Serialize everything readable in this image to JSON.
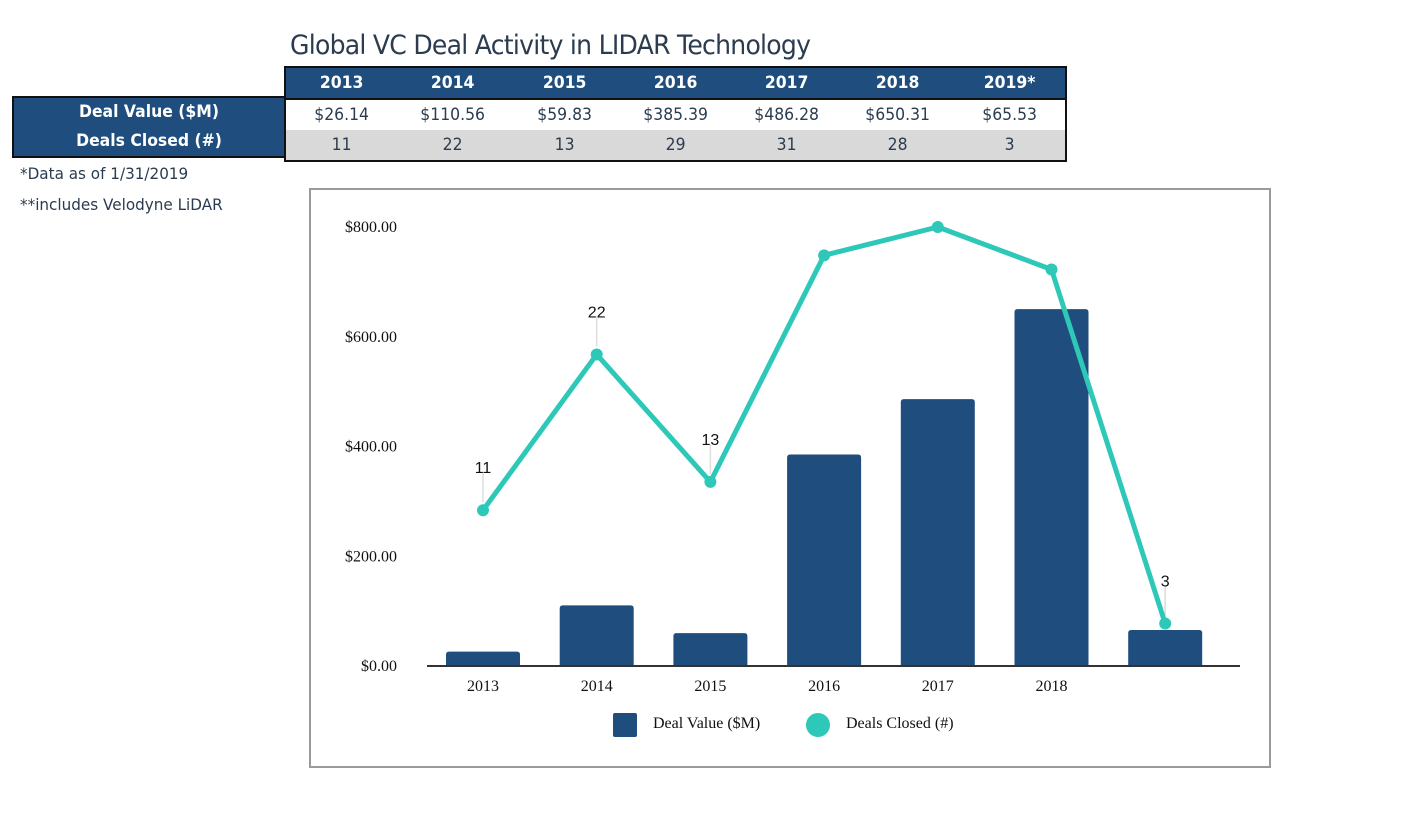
{
  "title": "Global VC Deal Activity in LIDAR Technology",
  "table": {
    "columns": [
      "2013",
      "2014",
      "2015",
      "2016",
      "2017",
      "2018",
      "2019*"
    ],
    "rows": [
      {
        "label": "Deal Value ($M)",
        "values": [
          "$26.14",
          "$110.56",
          "$59.83",
          "$385.39",
          "$486.28",
          "$650.31",
          "$65.53"
        ]
      },
      {
        "label": "Deals Closed (#)",
        "values": [
          "11",
          "22",
          "13",
          "29",
          "31",
          "28",
          "3"
        ]
      }
    ]
  },
  "notes": [
    "*Data as of 1/31/2019",
    "**includes Velodyne LiDAR"
  ],
  "colors": {
    "bar": "#1f4e7e",
    "line": "#2ec8b8",
    "header": "#1f4e7e",
    "text": "#2b3c50"
  },
  "chart_data": {
    "type": "bar",
    "title": "",
    "categories": [
      "2013",
      "2014",
      "2015",
      "2016",
      "2017",
      "2018",
      ""
    ],
    "series": [
      {
        "name": "Deal Value ($M)",
        "type": "bar",
        "axis": "primary",
        "values": [
          26.14,
          110.56,
          59.83,
          385.39,
          486.28,
          650.31,
          65.53
        ]
      },
      {
        "name": "Deals Closed (#)",
        "type": "line",
        "axis": "secondary",
        "values": [
          11,
          22,
          13,
          29,
          31,
          28,
          3
        ],
        "data_labels": [
          "11",
          "22",
          "13",
          "",
          "",
          "",
          "3"
        ]
      }
    ],
    "xlabel": "",
    "ylabel": "",
    "ylim": [
      0,
      800
    ],
    "y2lim": [
      0,
      31
    ],
    "yticks": [
      "$0.00",
      "$200.00",
      "$400.00",
      "$600.00",
      "$800.00"
    ],
    "ytick_values": [
      0,
      200,
      400,
      600,
      800
    ],
    "grid": false,
    "legend": "bottom",
    "legend_entries": [
      "Deal Value ($M)",
      "Deals Closed (#)"
    ]
  }
}
